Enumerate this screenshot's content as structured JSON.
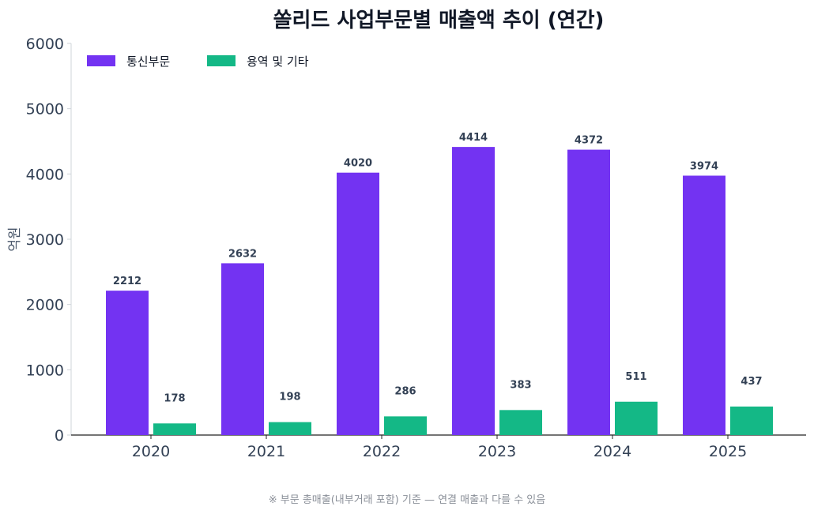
{
  "chart_data": {
    "type": "bar",
    "title": "쏠리드 사업부문별 매출액 추이 (연간)",
    "ylabel": "억원",
    "xlabel": "",
    "ylim": [
      0,
      6000
    ],
    "yticks": [
      0,
      1000,
      2000,
      3000,
      4000,
      5000,
      6000
    ],
    "categories": [
      "2020",
      "2021",
      "2022",
      "2023",
      "2024",
      "2025"
    ],
    "series": [
      {
        "name": "통신부문",
        "color": "#7333f2",
        "values": [
          2212,
          2632,
          4020,
          4414,
          4372,
          3974
        ]
      },
      {
        "name": "용역 및 기타",
        "color": "#14b886",
        "values": [
          178,
          198,
          286,
          383,
          511,
          437
        ]
      }
    ],
    "legend": "top-left",
    "grid": false,
    "footnote": "※ 부문 총매출(내부거래 포함) 기준 — 연결 매출과 다를 수 있음"
  }
}
